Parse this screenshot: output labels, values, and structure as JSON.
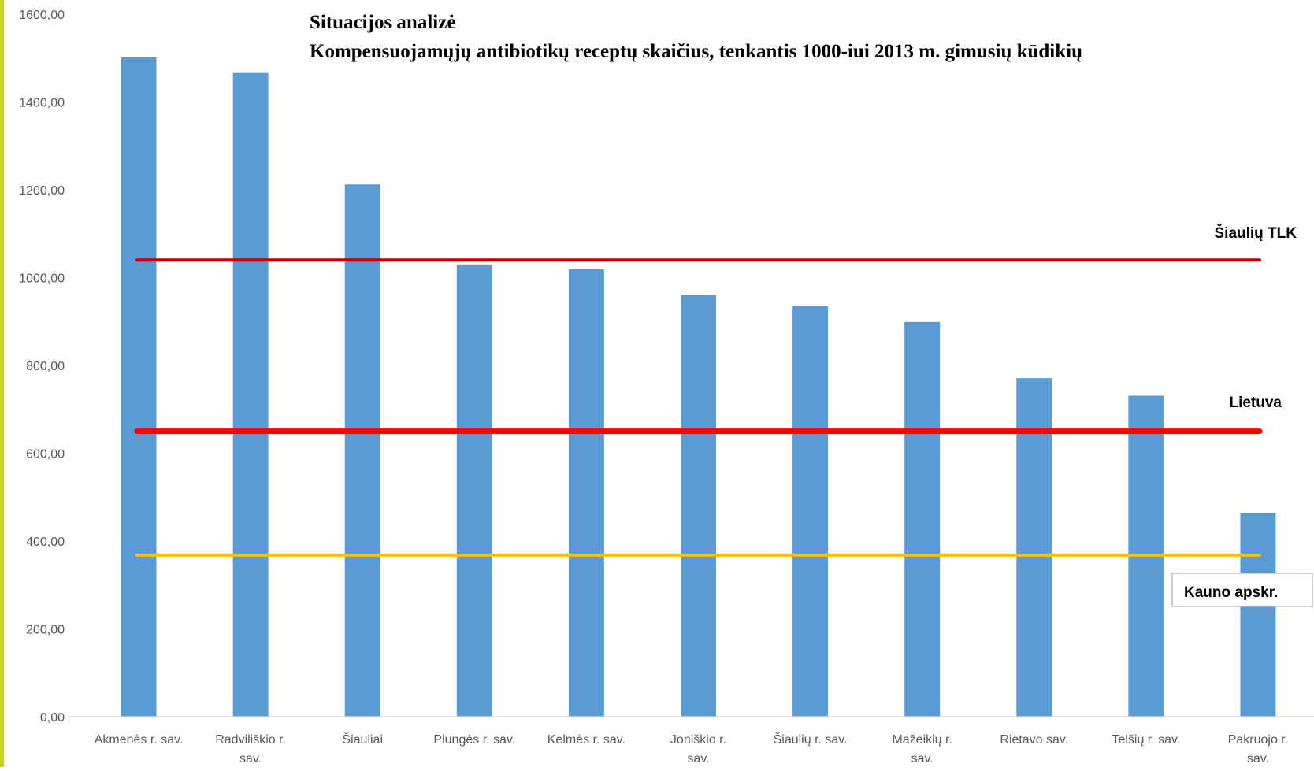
{
  "chart_data": {
    "type": "bar",
    "title_lines": [
      "Situacijos analizė",
      "Kompensuojamųjų antibiotikų receptų skaičius, tenkantis 1000-iui 2013 m. gimusių kūdikių"
    ],
    "xlabel": "",
    "ylabel": "",
    "categories": [
      "Akmenės r. sav.",
      "Radviliškio r. sav.",
      "Šiauliai",
      "Plungės r. sav.",
      "Kelmės r. sav.",
      "Joniškio r. sav.",
      "Šiaulių r. sav.",
      "Mažeikių r. sav.",
      "Rietavo sav.",
      "Telšių r. sav.",
      "Pakruojo r. sav."
    ],
    "values": [
      1502,
      1466,
      1212,
      1030,
      1019,
      961,
      935,
      899,
      771,
      731,
      464
    ],
    "bar_color": "#5b9bd5",
    "ylim": [
      0,
      1600
    ],
    "yticks": [
      "0,00",
      "200,00",
      "400,00",
      "600,00",
      "800,00",
      "1000,00",
      "1200,00",
      "1400,00",
      "1600,00"
    ],
    "grid": false,
    "reference_lines": [
      {
        "name": "Šiaulių TLK",
        "value": 1040,
        "color": "#c00000"
      },
      {
        "name": "Lietuva",
        "value": 650,
        "color": "#ff0000"
      },
      {
        "name": "Kauno apskr.",
        "value": 368,
        "color": "#ffc000"
      }
    ]
  }
}
